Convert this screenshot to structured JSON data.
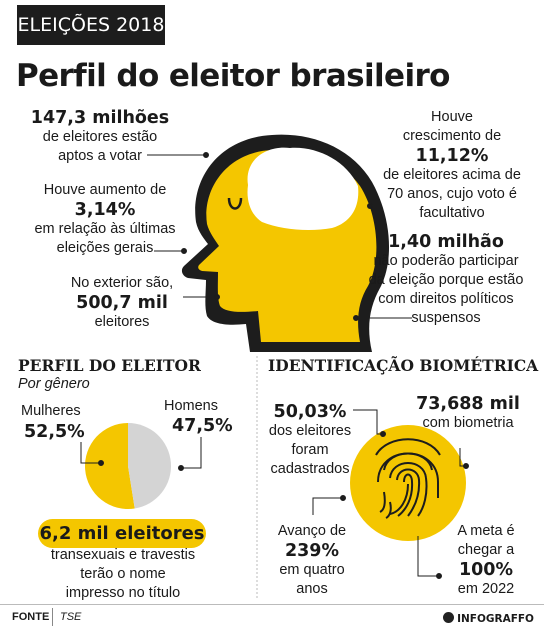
{
  "header": {
    "badge": "ELEIÇÕES 2018",
    "title": "Perfil do eleitor brasileiro"
  },
  "facts": {
    "aptos": {
      "value": "147,3 milhões",
      "text1": "de eleitores estão",
      "text2": "aptos a votar"
    },
    "aumento": {
      "text1": "Houve aumento de",
      "value": "3,14%",
      "text2": "em relação às últimas",
      "text3": "eleições gerais"
    },
    "exterior": {
      "text1": "No exterior são,",
      "value": "500,7 mil",
      "text2": "eleitores"
    },
    "crescimento": {
      "text1": "Houve",
      "text2": "crescimento de",
      "value": "11,12%",
      "text3": "de eleitores acima de",
      "text4": "70 anos, cujo voto é",
      "text5": "facultativo"
    },
    "suspensos": {
      "value": "1,40 milhão",
      "text1": "não poderão participar",
      "text2": "da eleição porque estão",
      "text3": "com direitos políticos",
      "text4": "suspensos"
    }
  },
  "perfil": {
    "title": "PERFIL DO ELEITOR",
    "subtitle": "Por gênero",
    "highlight": "6,2 mil eleitores",
    "note1": "transexuais e travestis",
    "note2": "terão o nome",
    "note3": "impresso no título"
  },
  "bio": {
    "title": "IDENTIFICAÇÃO BIOMÉTRICA",
    "pct": {
      "value": "50,03%",
      "text1": "dos eleitores",
      "text2": "foram",
      "text3": "cadastrados"
    },
    "com": {
      "value": "73,688 mil",
      "text1": "com biometria"
    },
    "avanco": {
      "text1": "Avanço de",
      "value": "239%",
      "text2": "em quatro",
      "text3": "anos"
    },
    "meta": {
      "text1": "A meta é",
      "text2": "chegar a",
      "value": "100%",
      "text3": "em 2022"
    }
  },
  "chart_data": {
    "type": "pie",
    "title": "",
    "categories": [
      "Mulheres",
      "Homens"
    ],
    "values": [
      52.5,
      47.5
    ],
    "value_labels": [
      "52,5%",
      "47,5%"
    ],
    "colors": [
      "#f4c600",
      "#d4d4d4"
    ]
  },
  "footer": {
    "label": "FONTE",
    "source": "TSE",
    "brand": "INFOGRAFFO"
  },
  "colors": {
    "accent": "#f4c600",
    "dark": "#1d1d1d",
    "gray": "#d4d4d4"
  }
}
